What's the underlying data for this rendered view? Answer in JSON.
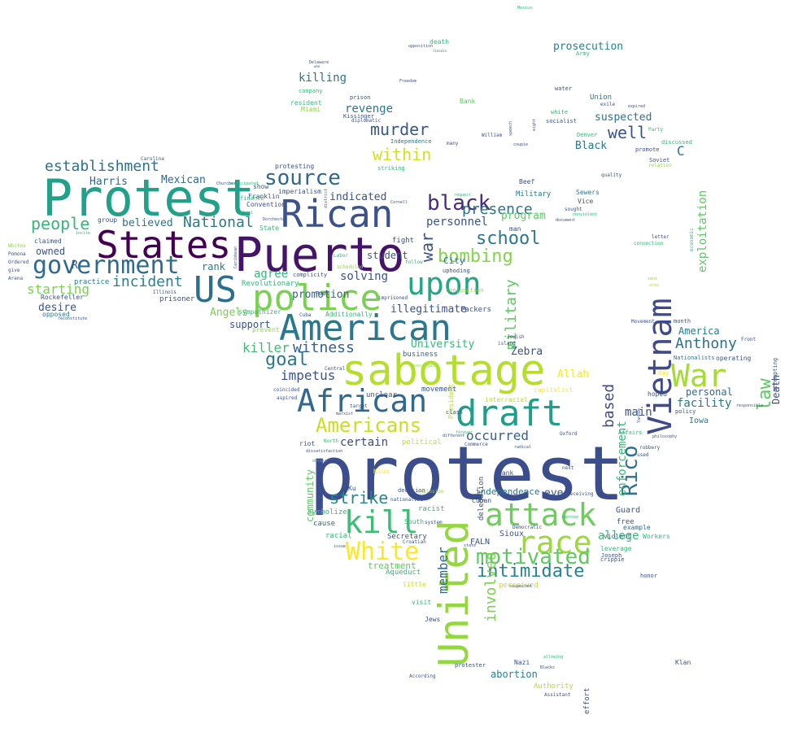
{
  "palette": {
    "dark_purple": "#440154",
    "indigo": "#3b528b",
    "blue": "#31688e",
    "teal": "#21918c",
    "green": "#35b779",
    "lime": "#90d743",
    "yellow": "#fde725",
    "background": "#ffffff"
  },
  "words": [
    {
      "text": "protest",
      "color": "#3b4d8c"
    },
    {
      "text": "Protest",
      "color": "#21a08a"
    },
    {
      "text": "Puerto",
      "color": "#45136a"
    },
    {
      "text": "States",
      "color": "#440154"
    },
    {
      "text": "Rican",
      "color": "#3b528b"
    },
    {
      "text": "US",
      "color": "#2c6e8e"
    },
    {
      "text": "government",
      "color": "#2f6b8e"
    },
    {
      "text": "police",
      "color": "#7ad151"
    },
    {
      "text": "upon",
      "color": "#22a884"
    },
    {
      "text": "American",
      "color": "#2a788e"
    },
    {
      "text": "sabotage",
      "color": "#b5de2b"
    },
    {
      "text": "draft",
      "color": "#1f9e89"
    },
    {
      "text": "African",
      "color": "#31688e"
    },
    {
      "text": "United",
      "color": "#94d840"
    },
    {
      "text": "Vietnam",
      "color": "#3e4a89"
    },
    {
      "text": "War",
      "color": "#a5db36"
    },
    {
      "text": "attack",
      "color": "#6ccd5a"
    },
    {
      "text": "race",
      "color": "#9bd93c"
    },
    {
      "text": "kill",
      "color": "#3dbc74"
    },
    {
      "text": "White",
      "color": "#fde725"
    },
    {
      "text": "motivated",
      "color": "#5ec962"
    },
    {
      "text": "intimidate",
      "color": "#26828e"
    },
    {
      "text": "Americans",
      "color": "#c8e020"
    },
    {
      "text": "source",
      "color": "#31688e"
    },
    {
      "text": "establishment",
      "color": "#2c728e"
    },
    {
      "text": "black",
      "color": "#472d7b"
    },
    {
      "text": "presence",
      "color": "#2d708e"
    },
    {
      "text": "school",
      "color": "#2a788e"
    },
    {
      "text": "bombing",
      "color": "#84d44b"
    },
    {
      "text": "murder",
      "color": "#38588c"
    },
    {
      "text": "within",
      "color": "#d2e21b"
    },
    {
      "text": "well",
      "color": "#3b528b"
    },
    {
      "text": "Rico",
      "color": "#2c728e"
    },
    {
      "text": "law",
      "color": "#5ec962"
    },
    {
      "text": "Anthony",
      "color": "#2c728e"
    },
    {
      "text": "goal",
      "color": "#2a788e"
    },
    {
      "text": "witness",
      "color": "#34618d"
    },
    {
      "text": "killer",
      "color": "#3dbc74"
    },
    {
      "text": "impetus",
      "color": "#3b528b"
    },
    {
      "text": "National",
      "color": "#2a788e"
    },
    {
      "text": "people",
      "color": "#35b779"
    },
    {
      "text": "incident",
      "color": "#26828e"
    },
    {
      "text": "starting",
      "color": "#7ad151"
    },
    {
      "text": "strike",
      "color": "#23898e"
    },
    {
      "text": "occurred",
      "color": "#34618d"
    },
    {
      "text": "based",
      "color": "#3e4a89"
    },
    {
      "text": "certain",
      "color": "#3e4a89"
    },
    {
      "text": "enforcement",
      "color": "#35b779"
    },
    {
      "text": "exploitation",
      "color": "#5ec962"
    },
    {
      "text": "facility",
      "color": "#2a788e"
    },
    {
      "text": "personal",
      "color": "#31688e"
    },
    {
      "text": "Death",
      "color": "#3e4a89"
    },
    {
      "text": "America",
      "color": "#2a788e"
    },
    {
      "text": "military",
      "color": "#5ec962"
    },
    {
      "text": "Mexican",
      "color": "#31688e"
    },
    {
      "text": "Harris",
      "color": "#31688e"
    },
    {
      "text": "believed",
      "color": "#2c728e"
    },
    {
      "text": "indicated",
      "color": "#3b528b"
    },
    {
      "text": "revenge",
      "color": "#2a788e"
    },
    {
      "text": "killing",
      "color": "#2a788e"
    },
    {
      "text": "prosecution",
      "color": "#26828e"
    },
    {
      "text": "suspected",
      "color": "#2c728e"
    },
    {
      "text": "Black",
      "color": "#2a788e"
    },
    {
      "text": "C",
      "color": "#2c728e"
    },
    {
      "text": "personnel",
      "color": "#3b528b"
    },
    {
      "text": "program",
      "color": "#5ec962"
    },
    {
      "text": "student",
      "color": "#3b528b"
    },
    {
      "text": "solving",
      "color": "#3b528b"
    },
    {
      "text": "agree",
      "color": "#35b779"
    },
    {
      "text": "promotion",
      "color": "#31688e"
    },
    {
      "text": "illegitimate",
      "color": "#3b528b"
    },
    {
      "text": "University",
      "color": "#35b779"
    },
    {
      "text": "Zebra",
      "color": "#3b528b"
    },
    {
      "text": "Allah",
      "color": "#fde725"
    },
    {
      "text": "main",
      "color": "#3b528b"
    },
    {
      "text": "allege",
      "color": "#35b779"
    },
    {
      "text": "involved",
      "color": "#7ad151"
    },
    {
      "text": "member",
      "color": "#31688e"
    },
    {
      "text": "community",
      "color": "#5ec962"
    },
    {
      "text": "abortion",
      "color": "#26828e"
    },
    {
      "text": "treatment",
      "color": "#5ec962"
    },
    {
      "text": "eye",
      "color": "#3b528b"
    },
    {
      "text": "independence",
      "color": "#2a788e"
    },
    {
      "text": "desire",
      "color": "#3b528b"
    },
    {
      "text": "owned",
      "color": "#3b528b"
    },
    {
      "text": "R",
      "color": "#3b528b"
    },
    {
      "text": "rank",
      "color": "#2a788e"
    },
    {
      "text": "Angels",
      "color": "#7ad151"
    },
    {
      "text": "support",
      "color": "#3b528b"
    },
    {
      "text": "City",
      "color": "#2a788e"
    },
    {
      "text": "war",
      "color": "#3b528b"
    },
    {
      "text": "Guard",
      "color": "#3b528b"
    },
    {
      "text": "Iowa",
      "color": "#2a788e"
    },
    {
      "text": "FALN",
      "color": "#3b528b"
    },
    {
      "text": "Sioux",
      "color": "#3b528b"
    },
    {
      "text": "symbolize",
      "color": "#35b779"
    },
    {
      "text": "cause",
      "color": "#31688e"
    },
    {
      "text": "racial",
      "color": "#35b779"
    },
    {
      "text": "Secretary",
      "color": "#3b528b"
    },
    {
      "text": "Aqueduct",
      "color": "#35b779"
    },
    {
      "text": "Authority",
      "color": "#b5de2b"
    },
    {
      "text": "effort",
      "color": "#3b528b"
    },
    {
      "text": "Klan",
      "color": "#3b528b"
    },
    {
      "text": "Nazi",
      "color": "#3b528b"
    },
    {
      "text": "Jews",
      "color": "#3b528b"
    },
    {
      "text": "visit",
      "color": "#35b779"
    },
    {
      "text": "Bank",
      "color": "#5ec962"
    },
    {
      "text": "Union",
      "color": "#2a788e"
    },
    {
      "text": "Beef",
      "color": "#3b528b"
    },
    {
      "text": "Military",
      "color": "#2a788e"
    },
    {
      "text": "Sewers",
      "color": "#2a788e"
    },
    {
      "text": "Vice",
      "color": "#3b528b"
    },
    {
      "text": "man",
      "color": "#3b528b"
    },
    {
      "text": "fight",
      "color": "#3b528b"
    },
    {
      "text": "business",
      "color": "#31688e"
    },
    {
      "text": "movement",
      "color": "#3b528b"
    },
    {
      "text": "unclear",
      "color": "#3b528b"
    },
    {
      "text": "political",
      "color": "#c8e020"
    },
    {
      "text": "riot",
      "color": "#3b528b"
    },
    {
      "text": "bank",
      "color": "#3b528b"
    },
    {
      "text": "racist",
      "color": "#35b779"
    },
    {
      "text": "South",
      "color": "#35b779"
    },
    {
      "text": "Cuban",
      "color": "#3b528b"
    },
    {
      "text": "Ku",
      "color": "#3b528b"
    },
    {
      "text": "Klux",
      "color": "#fde725"
    },
    {
      "text": "free",
      "color": "#3b528b"
    },
    {
      "text": "leverage",
      "color": "#35b779"
    },
    {
      "text": "example",
      "color": "#31688e"
    },
    {
      "text": "violent",
      "color": "#31688e"
    },
    {
      "text": "Workers",
      "color": "#35b779"
    },
    {
      "text": "honor",
      "color": "#3b528b"
    },
    {
      "text": "crippie",
      "color": "#3b528b"
    },
    {
      "text": "Joseph",
      "color": "#3b528b"
    },
    {
      "text": "day",
      "color": "#fde725"
    },
    {
      "text": "hoped",
      "color": "#3b528b"
    },
    {
      "text": "policy",
      "color": "#3b528b"
    },
    {
      "text": "month",
      "color": "#3b528b"
    },
    {
      "text": "operating",
      "color": "#3b528b"
    },
    {
      "text": "Nationalists",
      "color": "#2a788e"
    },
    {
      "text": "attempting",
      "color": "#3b528b"
    },
    {
      "text": "capitalist",
      "color": "#fde725"
    },
    {
      "text": "interracial",
      "color": "#b5de2b"
    },
    {
      "text": "President",
      "color": "#b5de2b"
    },
    {
      "text": "delegation",
      "color": "#3b528b"
    },
    {
      "text": "Packers",
      "color": "#3b528b"
    },
    {
      "text": "Revolutionary",
      "color": "#35b779"
    },
    {
      "text": "practice",
      "color": "#2a788e"
    },
    {
      "text": "prisoner",
      "color": "#3b528b"
    },
    {
      "text": "Rockefeller",
      "color": "#3b528b"
    },
    {
      "text": "opposed",
      "color": "#2a788e"
    },
    {
      "text": "claimed",
      "color": "#3b528b"
    },
    {
      "text": "group",
      "color": "#3b528b"
    },
    {
      "text": "Franklin",
      "color": "#3b528b"
    },
    {
      "text": "Convention",
      "color": "#3b528b"
    },
    {
      "text": "State",
      "color": "#35b779"
    },
    {
      "text": "imperialism",
      "color": "#3b528b"
    },
    {
      "text": "show",
      "color": "#3b528b"
    },
    {
      "text": "protesting",
      "color": "#3b528b"
    },
    {
      "text": "finance",
      "color": "#35b779"
    },
    {
      "text": "Additionally",
      "color": "#35b779"
    },
    {
      "text": "sympathizer",
      "color": "#35b779"
    },
    {
      "text": "prevent",
      "color": "#90d743"
    },
    {
      "text": "complicity",
      "color": "#3b528b"
    },
    {
      "text": "Paul",
      "color": "#3b528b"
    },
    {
      "text": "uphoding",
      "color": "#3b528b"
    },
    {
      "text": "conjunction",
      "color": "#90d743"
    },
    {
      "text": "Independence",
      "color": "#2a788e"
    },
    {
      "text": "striking",
      "color": "#35b779"
    },
    {
      "text": "resident",
      "color": "#35b779"
    },
    {
      "text": "Miami",
      "color": "#90d743"
    },
    {
      "text": "company",
      "color": "#35b779"
    },
    {
      "text": "prison",
      "color": "#3b528b"
    },
    {
      "text": "Kissinger",
      "color": "#3b528b"
    },
    {
      "text": "diplomatic",
      "color": "#3b528b"
    },
    {
      "text": "death",
      "color": "#35b779"
    },
    {
      "text": "Army",
      "color": "#35b779"
    },
    {
      "text": "white",
      "color": "#35b779"
    },
    {
      "text": "socialist",
      "color": "#3b528b"
    },
    {
      "text": "water",
      "color": "#3b528b"
    },
    {
      "text": "Denver",
      "color": "#35b779"
    },
    {
      "text": "promote",
      "color": "#3b528b"
    },
    {
      "text": "Soviet",
      "color": "#3b528b"
    },
    {
      "text": "Party",
      "color": "#35b779"
    },
    {
      "text": "discussed",
      "color": "#35b779"
    },
    {
      "text": "relation",
      "color": "#90d743"
    },
    {
      "text": "economic",
      "color": "#35b779"
    },
    {
      "text": "connection",
      "color": "#35b779"
    },
    {
      "text": "letter",
      "color": "#3b528b"
    },
    {
      "text": "Carolina",
      "color": "#3b528b"
    },
    {
      "text": "Illinois",
      "color": "#3b528b"
    },
    {
      "text": "Cuba",
      "color": "#3b528b"
    },
    {
      "text": "Commerce",
      "color": "#3b528b"
    },
    {
      "text": "Oxford",
      "color": "#3b528b"
    },
    {
      "text": "Affairs",
      "color": "#35b779"
    },
    {
      "text": "time",
      "color": "#3b528b"
    },
    {
      "text": "next",
      "color": "#3b528b"
    },
    {
      "text": "receiving",
      "color": "#3b528b"
    },
    {
      "text": "Democratic",
      "color": "#3b528b"
    },
    {
      "text": "Croatian",
      "color": "#3b528b"
    },
    {
      "text": "According",
      "color": "#3b528b"
    },
    {
      "text": "protester",
      "color": "#3b528b"
    },
    {
      "text": "Assistant",
      "color": "#3b528b"
    },
    {
      "text": "perceived",
      "color": "#c8e020"
    },
    {
      "text": "little",
      "color": "#c8e020"
    },
    {
      "text": "decision",
      "color": "#3b528b"
    },
    {
      "text": "nationalist",
      "color": "#3b528b"
    },
    {
      "text": "explosion",
      "color": "#90d743"
    },
    {
      "text": "class",
      "color": "#3b528b"
    },
    {
      "text": "many",
      "color": "#3b528b"
    },
    {
      "text": "Front",
      "color": "#3b528b"
    },
    {
      "text": "quality",
      "color": "#3b528b"
    },
    {
      "text": "sought",
      "color": "#3b528b"
    },
    {
      "text": "William",
      "color": "#3b528b"
    },
    {
      "text": "exile",
      "color": "#3b528b"
    },
    {
      "text": "eight",
      "color": "#3b528b"
    },
    {
      "text": "coupie",
      "color": "#3b528b"
    },
    {
      "text": "speech",
      "color": "#3b528b"
    },
    {
      "text": "imprisoned",
      "color": "#3b528b"
    },
    {
      "text": "Labor",
      "color": "#35b779"
    },
    {
      "text": "scheduled",
      "color": "#90d743"
    },
    {
      "text": "Jewish",
      "color": "#3b528b"
    },
    {
      "text": "island",
      "color": "#3b528b"
    },
    {
      "text": "Central",
      "color": "#3b528b"
    },
    {
      "text": "coincided",
      "color": "#3b528b"
    },
    {
      "text": "aspired",
      "color": "#3b528b"
    },
    {
      "text": "target",
      "color": "#3b528b"
    },
    {
      "text": "marxist",
      "color": "#3b528b"
    },
    {
      "text": "North",
      "color": "#35b779"
    },
    {
      "text": "dissatisfaction",
      "color": "#3b528b"
    },
    {
      "text": "obtain",
      "color": "#35b779"
    },
    {
      "text": "issue",
      "color": "#3b528b"
    },
    {
      "text": "system",
      "color": "#3b528b"
    },
    {
      "text": "used",
      "color": "#3b528b"
    },
    {
      "text": "robbery",
      "color": "#3b528b"
    },
    {
      "text": "Yankee",
      "color": "#3b528b"
    },
    {
      "text": "philosophy",
      "color": "#3b528b"
    },
    {
      "text": "Movement",
      "color": "#3b528b"
    },
    {
      "text": "responsible",
      "color": "#3b528b"
    },
    {
      "text": "Mexico",
      "color": "#35b779"
    },
    {
      "text": "Delaware",
      "color": "#3b528b"
    },
    {
      "text": "wan",
      "color": "#3b528b"
    },
    {
      "text": "Freedom",
      "color": "#3b528b"
    },
    {
      "text": "opposition",
      "color": "#3b528b"
    },
    {
      "text": "lincoln",
      "color": "#3b528b"
    },
    {
      "text": "expired",
      "color": "#3b528b"
    },
    {
      "text": "document",
      "color": "#3b528b"
    },
    {
      "text": "nonviolent",
      "color": "#35b779"
    },
    {
      "text": "different",
      "color": "#3b528b"
    },
    {
      "text": "forever",
      "color": "#35b779"
    },
    {
      "text": "allowing",
      "color": "#35b779"
    },
    {
      "text": "Blacks",
      "color": "#3b528b"
    },
    {
      "text": "radical",
      "color": "#3b528b"
    },
    {
      "text": "state",
      "color": "#3b528b"
    },
    {
      "text": "reconstitute",
      "color": "#3b528b"
    },
    {
      "text": "district",
      "color": "#3b528b"
    },
    {
      "text": "Caribbean",
      "color": "#3b528b"
    },
    {
      "text": "participated",
      "color": "#35b779"
    },
    {
      "text": "Churches",
      "color": "#3b528b"
    },
    {
      "text": "incite",
      "color": "#35b779"
    },
    {
      "text": "Dorchester",
      "color": "#3b528b"
    },
    {
      "text": "School",
      "color": "#35b779"
    },
    {
      "text": "Cornell",
      "color": "#3b528b"
    },
    {
      "text": "follow",
      "color": "#35b779"
    },
    {
      "text": "request",
      "color": "#35b779"
    },
    {
      "text": "investigate",
      "color": "#90d743"
    },
    {
      "text": "sent",
      "color": "#90d743"
    },
    {
      "text": "area",
      "color": "#c8e020"
    },
    {
      "text": "improve",
      "color": "#35b779"
    },
    {
      "text": "suspected",
      "color": "#3b528b"
    },
    {
      "text": "Whites",
      "color": "#90d743"
    },
    {
      "text": "Pomona",
      "color": "#3b528b"
    },
    {
      "text": "Ordered",
      "color": "#3b528b"
    },
    {
      "text": "give",
      "color": "#3b528b"
    },
    {
      "text": "Arena",
      "color": "#3b528b"
    }
  ]
}
